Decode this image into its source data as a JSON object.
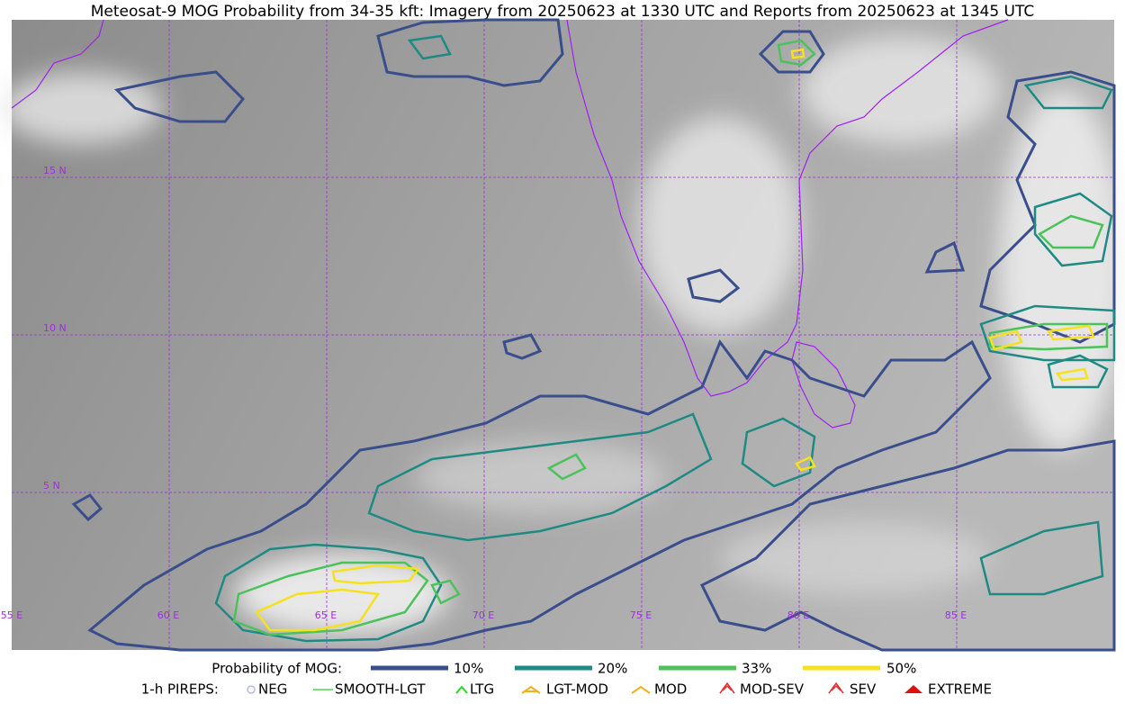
{
  "title": "Meteosat-9 MOG Probability from 34-35 kft: Imagery from 20250623 at 1330 UTC and Reports from 20250623 at 1345 UTC",
  "grid": {
    "lat_labels": [
      "15 N",
      "10 N",
      "5 N"
    ],
    "lon_labels": [
      "55 E",
      "60 E",
      "65 E",
      "70 E",
      "75 E",
      "80 E",
      "85 E"
    ]
  },
  "legend": {
    "probability": {
      "label": "Probability of MOG:",
      "items": [
        "10%",
        "20%",
        "33%",
        "50%"
      ]
    },
    "pireps": {
      "label": "1-h PIREPS:",
      "items": [
        "NEG",
        "SMOOTH-LGT",
        "LTG",
        "LGT-MOD",
        "MOD",
        "MOD-SEV",
        "SEV",
        "EXTREME"
      ]
    }
  }
}
